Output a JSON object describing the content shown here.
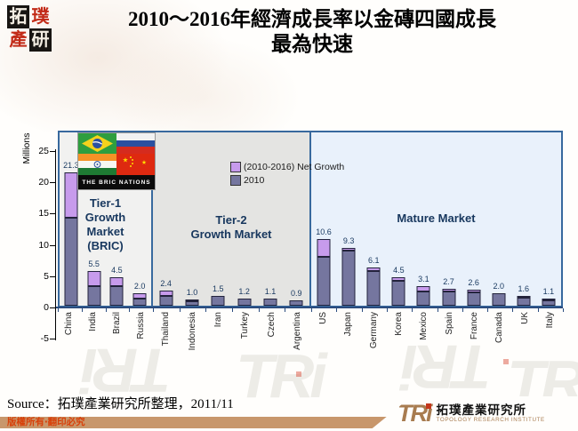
{
  "header": {
    "logo": {
      "chars": [
        "拓",
        "璞",
        "產",
        "研"
      ]
    },
    "title_line1": "2010～2016年經濟成長率以金磚四國成長",
    "title_line2": "最為快速"
  },
  "chart": {
    "y_axis_label": "Millions",
    "y_ticks": [
      25,
      20,
      15,
      10,
      5,
      0,
      -5
    ],
    "legend": [
      {
        "label": "(2010-2016) Net Growth",
        "color": "#C79BEC"
      },
      {
        "label": "2010",
        "color": "#75769F"
      }
    ],
    "bric_badge": "THE BRIC NATIONS"
  },
  "chart_data": {
    "type": "bar",
    "stacked": true,
    "title": "2010～2016年經濟成長率以金磚四國成長最為快速",
    "ylabel": "Millions",
    "ylim": [
      -5,
      25
    ],
    "grid": false,
    "legend_position": "top-center",
    "categories": [
      "China",
      "India",
      "Brazil",
      "Russia",
      "Thailand",
      "Indonesia",
      "Iran",
      "Turkey",
      "Czech",
      "Argentina",
      "US",
      "Japan",
      "Germany",
      "Korea",
      "Mexico",
      "Spain",
      "France",
      "Canada",
      "UK",
      "Italy"
    ],
    "series": [
      {
        "name": "2010",
        "color": "#75769F",
        "values": [
          14.0,
          3.2,
          3.1,
          1.2,
          1.6,
          0.75,
          1.5,
          1.2,
          1.1,
          0.9,
          7.8,
          8.8,
          5.5,
          4.0,
          2.3,
          2.35,
          2.2,
          2.0,
          1.35,
          0.8
        ]
      },
      {
        "name": "(2010-2016) Net Growth",
        "color": "#C79BEC",
        "values": [
          7.3,
          2.3,
          1.4,
          0.8,
          0.8,
          0.25,
          0,
          0,
          0,
          0,
          2.8,
          0.5,
          0.6,
          0.5,
          0.8,
          0.35,
          0.4,
          0,
          0.25,
          0.3
        ]
      }
    ],
    "totals": [
      21.3,
      5.5,
      4.5,
      2.0,
      2.4,
      1.0,
      1.5,
      1.2,
      1.1,
      0.9,
      10.6,
      9.3,
      6.1,
      4.5,
      3.1,
      2.7,
      2.6,
      2.0,
      1.6,
      1.1
    ],
    "value_labels": [
      "21.3",
      "5.5",
      "4.5",
      "2.0",
      "2.4",
      "1.0",
      "1.5",
      "1.2",
      "1.1",
      "0.9",
      "10.6",
      "9.3",
      "6.1",
      "4.5",
      "3.1",
      "2.7",
      "2.6",
      "2.0",
      "1.6",
      "1.1"
    ],
    "groups": [
      {
        "id": "tier-1",
        "label_lines": [
          "Tier-1",
          "Growth",
          "Market",
          "(BRIC)"
        ],
        "count": 4,
        "bg": "#F1F1F0"
      },
      {
        "id": "tier-2",
        "label_lines": [
          "Tier-2",
          "Growth Market"
        ],
        "count": 6,
        "bg": "#E4E4E2"
      },
      {
        "id": "mature",
        "label_lines": [
          "Mature Market"
        ],
        "count": 10,
        "bg": "#E9F1FB"
      }
    ]
  },
  "footer": {
    "source": "Source：拓璞產業研究所整理，2011/11",
    "copyright": "版權所有‧翻印必究",
    "tri": {
      "acronym": "TRi",
      "cn": "拓璞產業研究所",
      "en": "TOPOLOGY RESEARCH INSTITUTE"
    }
  }
}
